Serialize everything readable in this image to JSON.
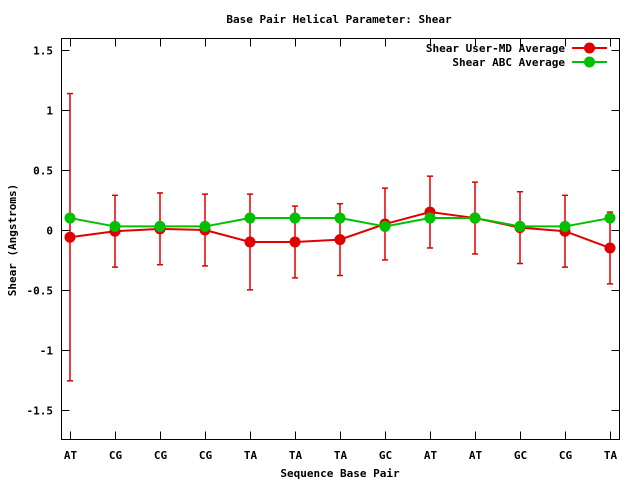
{
  "chart_data": {
    "type": "line",
    "title": "Base Pair Helical Parameter: Shear",
    "xlabel": "Sequence Base Pair",
    "ylabel": "Shear (Angstroms)",
    "categories": [
      "AT",
      "CG",
      "CG",
      "CG",
      "TA",
      "TA",
      "TA",
      "GC",
      "AT",
      "AT",
      "GC",
      "CG",
      "TA"
    ],
    "ylim": [
      -1.75,
      1.6
    ],
    "yticks": [
      -1.5,
      -1,
      -0.5,
      0,
      0.5,
      1,
      1.5
    ],
    "ytick_labels": [
      "-1.5",
      "-1",
      "-0.5",
      "0",
      "0.5",
      "1",
      "1.5"
    ],
    "grid": false,
    "legend_position": "top-right",
    "series": [
      {
        "name": "Shear User-MD Average",
        "color": "#e00000",
        "values": [
          -0.06,
          -0.01,
          0.01,
          0.0,
          -0.1,
          -0.1,
          -0.08,
          0.05,
          0.15,
          0.1,
          0.02,
          -0.01,
          -0.15
        ],
        "errors": [
          1.2,
          0.3,
          0.3,
          0.3,
          0.4,
          0.3,
          0.3,
          0.3,
          0.3,
          0.3,
          0.3,
          0.3,
          0.3
        ],
        "error_bars": true
      },
      {
        "name": "Shear ABC Average",
        "color": "#00c000",
        "values": [
          0.1,
          0.03,
          0.03,
          0.03,
          0.1,
          0.1,
          0.1,
          0.03,
          0.1,
          0.1,
          0.03,
          0.03,
          0.1
        ],
        "error_bars": false
      }
    ]
  }
}
